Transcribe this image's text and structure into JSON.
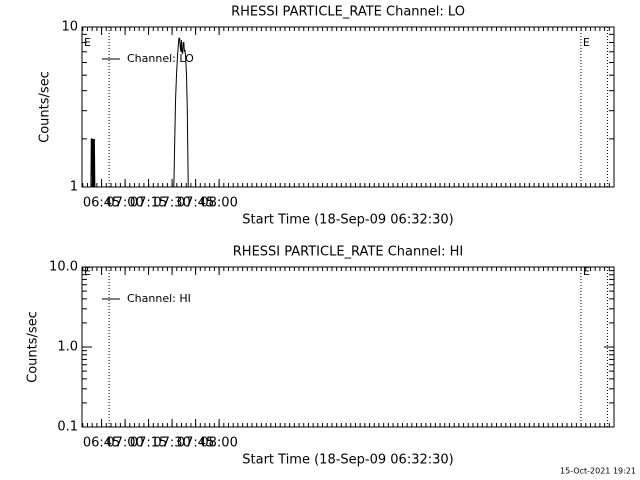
{
  "chart_data": [
    {
      "type": "line",
      "title": "RHESSI PARTICLE_RATE Channel: LO",
      "xlabel": "Start Time (18-Sep-09 06:32:30)",
      "ylabel": "Counts/sec",
      "xlim": [
        392.5,
        732
      ],
      "xticks": [
        {
          "value": 405,
          "label": "06:45"
        },
        {
          "value": 420,
          "label": "07:00"
        },
        {
          "value": 435,
          "label": "07:15"
        },
        {
          "value": 450,
          "label": "07:30"
        },
        {
          "value": 465,
          "label": "07:45"
        },
        {
          "value": 480,
          "label": "08:00"
        }
      ],
      "ylim": [
        1,
        10
      ],
      "yticks": [
        1,
        10
      ],
      "log_y": true,
      "x": [
        398.2,
        398.4,
        398.7,
        399.0,
        399.2,
        399.6,
        399.8,
        400.2,
        400.4,
        400.7,
        451.1,
        451.7,
        452.2,
        452.8,
        453.4,
        453.9,
        454.3,
        454.8,
        455.2,
        455.6,
        455.9,
        456.3,
        456.7,
        457.1,
        457.5,
        457.8,
        458.2,
        458.6,
        459.2,
        459.7,
        460.3
      ],
      "series": [
        {
          "name": "Channel: LO",
          "color": "#000000",
          "values": [
            1,
            2,
            2,
            1,
            2,
            1,
            2,
            1,
            2,
            1,
            1,
            2,
            3.5,
            5,
            6.5,
            7.5,
            8.5,
            8.5,
            7.5,
            7,
            8.3,
            7,
            6.8,
            8,
            8,
            7,
            7.2,
            6.5,
            5,
            3,
            1
          ]
        }
      ],
      "legend": "upper left",
      "marker_lines": [
        409.8,
        710.9,
        727.8
      ],
      "annotations": [
        {
          "x": 392.5,
          "label": "E"
        },
        {
          "x": 710.9,
          "label": "E"
        }
      ]
    },
    {
      "type": "line",
      "title": "RHESSI PARTICLE_RATE Channel: HI",
      "xlabel": "Start Time (18-Sep-09 06:32:30)",
      "ylabel": "Counts/sec",
      "xlim": [
        392.5,
        732
      ],
      "xticks": [
        {
          "value": 405,
          "label": "06:45"
        },
        {
          "value": 420,
          "label": "07:00"
        },
        {
          "value": 435,
          "label": "07:15"
        },
        {
          "value": 450,
          "label": "07:30"
        },
        {
          "value": 465,
          "label": "07:45"
        },
        {
          "value": 480,
          "label": "08:00"
        }
      ],
      "ylim": [
        0.1,
        10
      ],
      "yticks": [
        0.1,
        {
          "value": 1,
          "label": "1.0"
        },
        {
          "value": 10,
          "label": "10.0"
        }
      ],
      "log_y": true,
      "x": [],
      "series": [
        {
          "name": "Channel: HI",
          "color": "#000000",
          "values": []
        }
      ],
      "legend": "upper left",
      "marker_lines": [
        409.8,
        710.9,
        727.8
      ],
      "annotations": [
        {
          "x": 392.5,
          "label": "E"
        },
        {
          "x": 710.9,
          "label": "E"
        }
      ]
    }
  ],
  "footer": "15-Oct-2021 19:21"
}
